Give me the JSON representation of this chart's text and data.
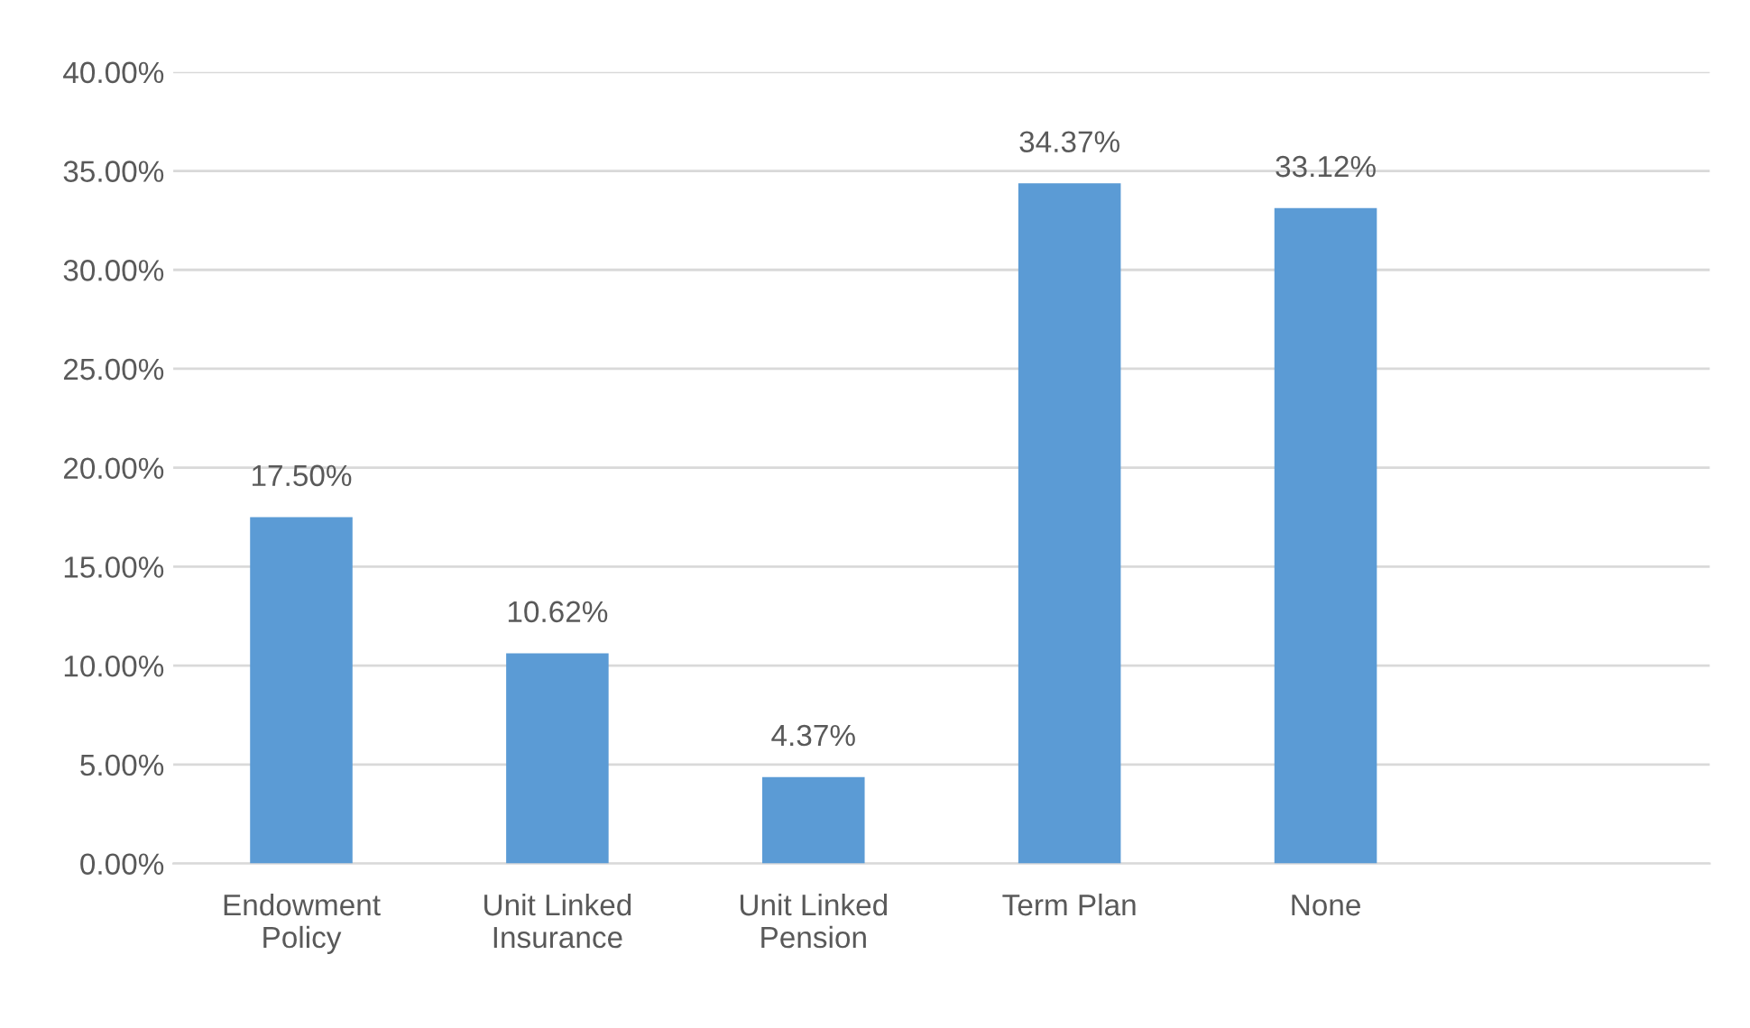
{
  "chart_data": {
    "type": "bar",
    "categories": [
      "Endowment\nPolicy",
      "Unit Linked\nInsurance",
      "Unit Linked\nPension",
      "Term Plan",
      "None",
      null
    ],
    "values": [
      17.5,
      10.62,
      4.37,
      34.37,
      33.12,
      null
    ],
    "value_labels": [
      "17.50%",
      "10.62%",
      "4.37%",
      "34.37%",
      "33.12%",
      null
    ],
    "color": "#5b9bd5",
    "ylim": [
      0,
      40
    ],
    "yticks": [
      {
        "value": 0,
        "label": "0.00%"
      },
      {
        "value": 5,
        "label": "5.00%"
      },
      {
        "value": 10,
        "label": "10.00%"
      },
      {
        "value": 15,
        "label": "15.00%"
      },
      {
        "value": 20,
        "label": "20.00%"
      },
      {
        "value": 25,
        "label": "25.00%"
      },
      {
        "value": 30,
        "label": "30.00%"
      },
      {
        "value": 35,
        "label": "35.00%"
      },
      {
        "value": 40,
        "label": "40.00%"
      }
    ],
    "grid": "y",
    "legend": false
  }
}
